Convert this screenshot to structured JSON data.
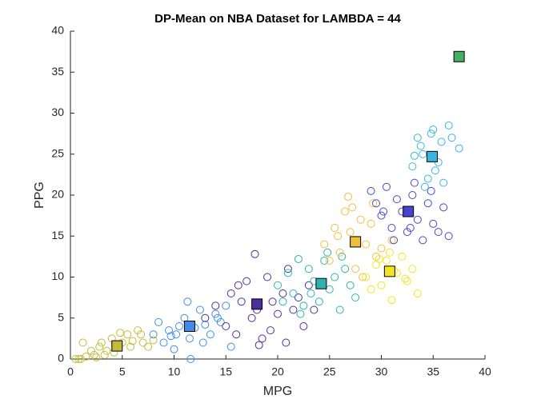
{
  "chart_data": {
    "type": "scatter",
    "title": "DP-Mean on NBA Dataset for LAMBDA = 44",
    "x_label": "MPG",
    "y_label": "PPG",
    "xlim": [
      0,
      40
    ],
    "ylim": [
      0,
      40
    ],
    "xticks": [
      0,
      5,
      10,
      15,
      20,
      25,
      30,
      35,
      40
    ],
    "yticks": [
      0,
      5,
      10,
      15,
      20,
      25,
      30,
      35,
      40
    ],
    "series": [
      {
        "color": "#c4bb3a",
        "centroid": [
          4.5,
          1.6
        ],
        "x": [
          0.5,
          1,
          1.5,
          2,
          2.3,
          2.8,
          3,
          3.5,
          4,
          4.2,
          5,
          5.5,
          6,
          6.5,
          7,
          7.5,
          8,
          1.2,
          3.3,
          5.8,
          6.8,
          2.5,
          4.8,
          0.8
        ],
        "y": [
          0,
          0,
          0.3,
          1,
          0.5,
          1.5,
          2,
          1,
          2.5,
          0.8,
          2,
          3,
          2.2,
          3.5,
          2,
          1.5,
          2.3,
          2,
          0.5,
          1.5,
          3,
          0.2,
          3.2,
          0
        ]
      },
      {
        "color": "#3d8de8",
        "centroid": [
          11.5,
          4.0
        ],
        "x": [
          8,
          8.5,
          9,
          9.5,
          10,
          10.5,
          11,
          11.5,
          12,
          12.5,
          13,
          13.5,
          14,
          14.5,
          15,
          15.5,
          9.7,
          11.3,
          12.8,
          14.2,
          10.2,
          11.6
        ],
        "y": [
          3,
          4.5,
          2,
          3.5,
          1.2,
          4,
          5,
          2.5,
          3.8,
          6,
          4.2,
          3,
          5.5,
          4.5,
          6.5,
          1.5,
          2.8,
          7,
          2,
          5,
          3,
          0
        ]
      },
      {
        "color": "#4b2f9c",
        "centroid": [
          18.0,
          6.7
        ],
        "x": [
          13,
          14,
          15,
          15.5,
          16,
          16.5,
          17,
          17.5,
          18,
          18.5,
          19,
          19.5,
          20,
          20.5,
          21,
          21.5,
          22,
          22.5,
          23,
          17.8,
          19.3,
          16.2,
          20.8,
          18.2,
          23.5
        ],
        "y": [
          5,
          6.5,
          4,
          8,
          3,
          7,
          9.5,
          5,
          6,
          2.5,
          10,
          7,
          5.5,
          8,
          11,
          6,
          7.5,
          4,
          9,
          12.8,
          3.5,
          9,
          2,
          1.7,
          6
        ]
      },
      {
        "color": "#2bb3ad",
        "centroid": [
          24.2,
          9.2
        ],
        "x": [
          20,
          20.5,
          21,
          21.5,
          22,
          22.5,
          23,
          23.5,
          24,
          24.5,
          25,
          25.5,
          26,
          26.5,
          27,
          27.5,
          22.2,
          24.8,
          26.2,
          23.2
        ],
        "y": [
          9,
          7,
          10.5,
          8,
          12.2,
          6.5,
          11,
          9.5,
          7,
          12,
          8.5,
          10,
          6,
          11,
          9,
          7.5,
          5.5,
          13,
          12.5,
          8
        ]
      },
      {
        "color": "#eebf3c",
        "centroid": [
          27.5,
          14.3
        ],
        "x": [
          24.5,
          25,
          25.5,
          26,
          26.5,
          27,
          27.5,
          28,
          28.5,
          29,
          29.5,
          30,
          26.8,
          28.2,
          25.8,
          27.2,
          29.2,
          31
        ],
        "y": [
          14,
          12,
          16,
          13,
          18,
          15.5,
          11,
          17,
          14,
          16.5,
          12.5,
          13.5,
          19.8,
          10,
          15,
          18.5,
          19,
          14.5
        ]
      },
      {
        "color": "#f4e61e",
        "centroid": [
          30.8,
          10.7
        ],
        "x": [
          28.5,
          29,
          29.5,
          30,
          30.5,
          31,
          31.5,
          32,
          32.5,
          33,
          33.5,
          30.8,
          29.8,
          32.3,
          31.2
        ],
        "y": [
          10,
          8.5,
          11.5,
          9,
          12,
          7.2,
          10.5,
          12.5,
          9.5,
          11,
          8,
          13,
          12.2,
          9.8,
          10.8
        ]
      },
      {
        "color": "#4545cf",
        "centroid": [
          32.6,
          18.0
        ],
        "x": [
          29,
          29.5,
          30,
          30.5,
          31,
          31.5,
          32,
          32.5,
          33,
          33.5,
          34,
          34.5,
          35,
          36,
          31.2,
          33.2,
          35.5,
          30.2,
          32.8,
          34.8,
          36.5
        ],
        "y": [
          20.5,
          19,
          17.5,
          21,
          16,
          19.5,
          18,
          15.5,
          20,
          17,
          14.5,
          19,
          16.5,
          18.5,
          14.5,
          21.5,
          15.5,
          18,
          16,
          20.5,
          15
        ]
      },
      {
        "color": "#36b6e0",
        "centroid": [
          34.9,
          24.7
        ],
        "x": [
          33,
          33.5,
          34,
          34.5,
          35,
          35.5,
          36,
          33.8,
          34.8,
          36.5,
          35.2,
          37.5,
          34.2,
          36.8,
          33.2,
          35.8
        ],
        "y": [
          23.5,
          27,
          25,
          22,
          28,
          24,
          21.5,
          26,
          27.5,
          28.5,
          23,
          25.7,
          21,
          27,
          24.8,
          26.5
        ]
      },
      {
        "color": "#45b060",
        "centroid": [
          37.5,
          36.9
        ],
        "x": [],
        "y": []
      }
    ]
  }
}
